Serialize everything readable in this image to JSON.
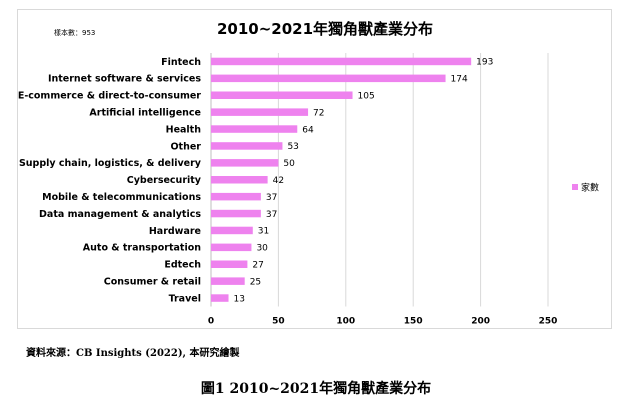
{
  "chart_data": {
    "type": "bar",
    "orientation": "horizontal",
    "title": "2010~2021年獨角獸產業分布",
    "sample_note": "樣本數：953",
    "categories": [
      "Fintech",
      "Internet software & services",
      "E-commerce & direct-to-consumer",
      "Artificial intelligence",
      "Health",
      "Other",
      "Supply chain, logistics, & delivery",
      "Cybersecurity",
      "Mobile & telecommunications",
      "Data management & analytics",
      "Hardware",
      "Auto & transportation",
      "Edtech",
      "Consumer & retail",
      "Travel"
    ],
    "series": [
      {
        "name": "家數",
        "values": [
          193,
          174,
          105,
          72,
          64,
          53,
          50,
          42,
          37,
          37,
          31,
          30,
          27,
          25,
          13
        ]
      }
    ],
    "xlim": [
      0,
      250
    ],
    "xticks": [
      0,
      50,
      100,
      150,
      200,
      250
    ],
    "grid": true,
    "legend_position": "right",
    "bar_color": "#ee82ee"
  },
  "source_note": "資料來源：CB Insights (2022), 本研究繪製",
  "figure_caption": "圖1  2010~2021年獨角獸產業分布"
}
